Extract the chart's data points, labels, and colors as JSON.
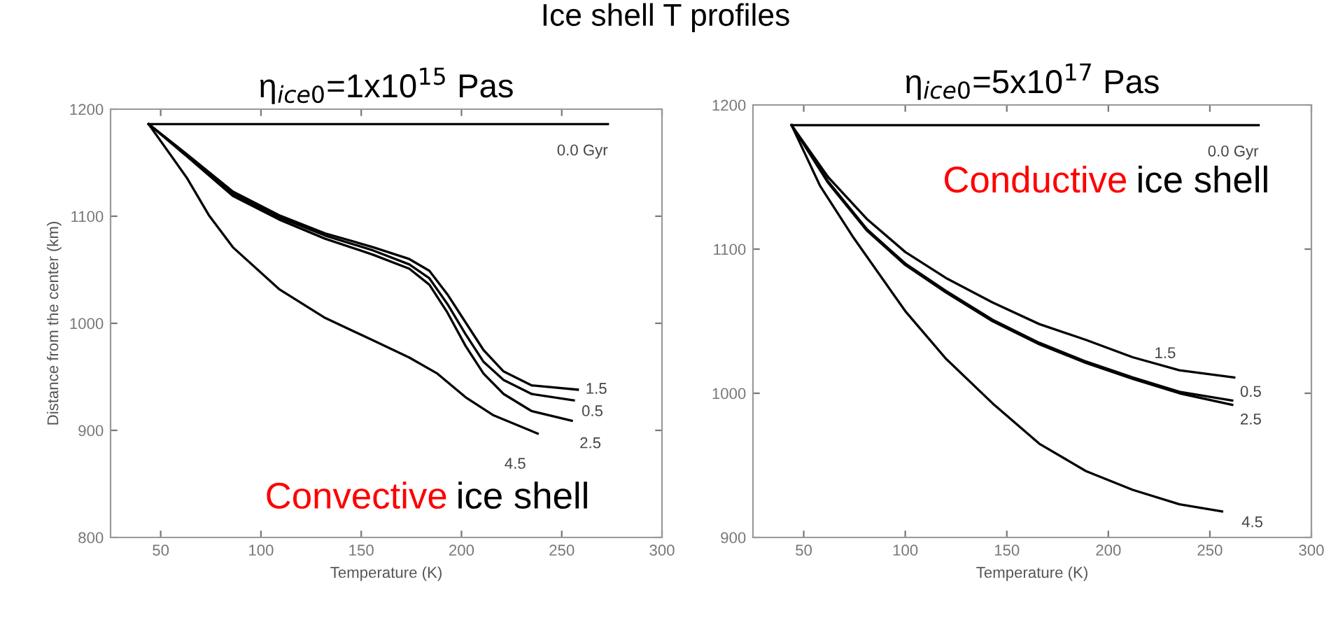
{
  "chart_data": [
    {
      "type": "line",
      "title": "η$_{ice0}$=1x10$^{15}$ Pas",
      "xlabel": "Temperature (K)",
      "ylabel": "Distance from the center (km)",
      "annotations": [
        "Ice shell T profiles",
        "Convective",
        "ice shell"
      ],
      "xlim": [
        25,
        300
      ],
      "ylim": [
        800,
        1200
      ],
      "xticks": [
        50,
        100,
        150,
        200,
        250,
        300
      ],
      "yticks": [
        800,
        900,
        1000,
        1100,
        1200
      ],
      "grid": false,
      "legend": false,
      "series": [
        {
          "name": "0.0 Gyr",
          "color": "#000000",
          "x": [
            44,
            273
          ],
          "values": [
            1186,
            1186
          ]
        },
        {
          "name": "1.5",
          "color": "#000000",
          "x": [
            44,
            63,
            86,
            109,
            132,
            156,
            174,
            184,
            193,
            202,
            211,
            221,
            235,
            258
          ],
          "values": [
            1186,
            1158,
            1123,
            1101,
            1084,
            1071,
            1060,
            1049,
            1027,
            1001,
            975,
            955,
            942,
            938
          ]
        },
        {
          "name": "0.5",
          "color": "#000000",
          "x": [
            44,
            63,
            86,
            109,
            132,
            156,
            174,
            184,
            193,
            202,
            211,
            221,
            235,
            256
          ],
          "values": [
            1186,
            1157,
            1121,
            1099,
            1082,
            1068,
            1055,
            1042,
            1018,
            990,
            964,
            947,
            934,
            928
          ]
        },
        {
          "name": "2.5",
          "color": "#000000",
          "x": [
            44,
            63,
            86,
            109,
            132,
            156,
            174,
            184,
            193,
            202,
            211,
            221,
            235,
            255
          ],
          "values": [
            1186,
            1156,
            1119,
            1097,
            1079,
            1064,
            1051,
            1036,
            1010,
            979,
            953,
            934,
            918,
            909
          ]
        },
        {
          "name": "4.5",
          "color": "#000000",
          "x": [
            44,
            63,
            74,
            86,
            109,
            132,
            156,
            174,
            188,
            202,
            216,
            238
          ],
          "values": [
            1186,
            1136,
            1101,
            1071,
            1032,
            1005,
            984,
            968,
            953,
            931,
            914,
            897
          ]
        }
      ]
    },
    {
      "type": "line",
      "title": "η$_{ice0}$=5x10$^{17}$ Pas",
      "xlabel": "Temperature (K)",
      "annotations": [
        "Conductive",
        "ice shell"
      ],
      "xlim": [
        25,
        300
      ],
      "ylim": [
        900,
        1200
      ],
      "xticks": [
        50,
        100,
        150,
        200,
        250,
        300
      ],
      "yticks": [
        900,
        1000,
        1100,
        1200
      ],
      "grid": false,
      "legend": false,
      "series": [
        {
          "name": "0.0 Gyr",
          "color": "#000000",
          "x": [
            44,
            274
          ],
          "values": [
            1186,
            1186
          ]
        },
        {
          "name": "1.5",
          "color": "#000000",
          "x": [
            44,
            62,
            81,
            100,
            120,
            143,
            166,
            189,
            212,
            235,
            262
          ],
          "values": [
            1186,
            1150,
            1121,
            1098,
            1080,
            1063,
            1048,
            1037,
            1025,
            1016,
            1011
          ]
        },
        {
          "name": "0.5",
          "color": "#000000",
          "x": [
            44,
            62,
            81,
            100,
            120,
            143,
            166,
            189,
            212,
            235,
            261
          ],
          "values": [
            1186,
            1147,
            1114,
            1090,
            1071,
            1051,
            1035,
            1022,
            1011,
            1001,
            995
          ]
        },
        {
          "name": "2.5",
          "color": "#000000",
          "x": [
            44,
            62,
            81,
            100,
            120,
            143,
            166,
            189,
            212,
            235,
            261
          ],
          "values": [
            1186,
            1146,
            1113,
            1089,
            1070,
            1050,
            1034,
            1021,
            1010,
            1000,
            992
          ]
        },
        {
          "name": "4.5",
          "color": "#000000",
          "x": [
            44,
            58,
            74,
            100,
            120,
            143,
            166,
            189,
            212,
            235,
            256
          ],
          "values": [
            1186,
            1144,
            1109,
            1057,
            1024,
            993,
            965,
            946,
            933,
            923,
            918
          ]
        }
      ]
    }
  ]
}
